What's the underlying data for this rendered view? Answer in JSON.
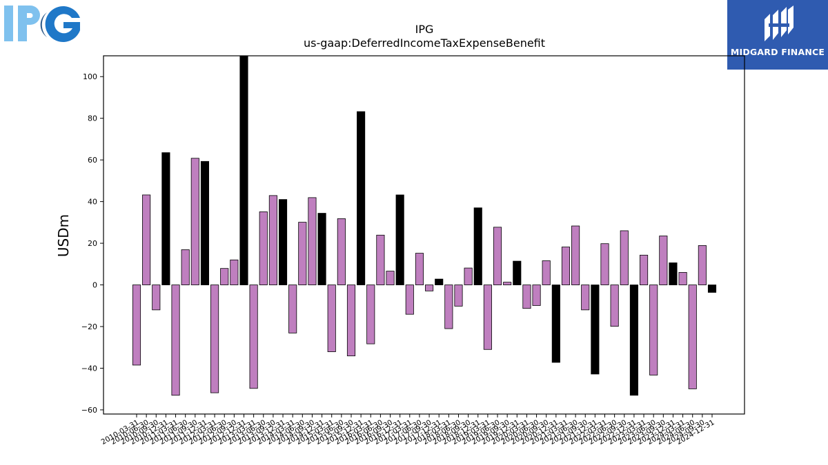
{
  "logos": {
    "left_logo_name": "ipg-logo",
    "right_logo_name": "midgard-finance-logo",
    "right_logo_text": "MIDGARD FINANCE",
    "right_logo_bg": "#2f5bb0"
  },
  "chart_data": {
    "type": "bar",
    "title": "IPG",
    "subtitle": "us-gaap:DeferredIncomeTaxExpenseBenefit",
    "xlabel": "",
    "ylabel": "USDm",
    "ylim": [
      -62,
      110
    ],
    "yticks": [
      -60,
      -40,
      -20,
      0,
      20,
      40,
      60,
      80,
      100
    ],
    "grid": false,
    "legend": "none",
    "colors": {
      "quarter": "#bf7fbf",
      "annual": "#000000",
      "edge": "#000000"
    },
    "categories": [
      "2010-03-31",
      "2010-06-30",
      "2010-09-30",
      "2010-12-31",
      "2011-03-31",
      "2011-06-30",
      "2011-09-30",
      "2011-12-31",
      "2012-03-31",
      "2012-06-30",
      "2012-09-30",
      "2012-12-31",
      "2013-03-31",
      "2013-06-30",
      "2013-09-30",
      "2013-12-31",
      "2014-03-31",
      "2014-06-30",
      "2014-09-30",
      "2014-12-31",
      "2015-03-31",
      "2015-06-30",
      "2015-09-30",
      "2015-12-31",
      "2016-03-31",
      "2016-06-30",
      "2016-09-30",
      "2016-12-31",
      "2017-03-31",
      "2017-06-30",
      "2017-09-30",
      "2017-12-31",
      "2018-03-31",
      "2018-06-30",
      "2018-09-30",
      "2018-12-31",
      "2019-03-31",
      "2019-06-30",
      "2019-09-30",
      "2019-12-31",
      "2020-03-31",
      "2020-06-30",
      "2020-09-30",
      "2020-12-31",
      "2021-03-31",
      "2021-06-30",
      "2021-09-30",
      "2021-12-31",
      "2022-03-31",
      "2022-06-30",
      "2022-09-30",
      "2022-12-31",
      "2023-03-31",
      "2023-06-30",
      "2023-09-30",
      "2023-12-31",
      "2024-03-31",
      "2024-06-30",
      "2024-09-30",
      "2024-12-31"
    ],
    "values": [
      -38.5,
      43.2,
      -12.0,
      63.5,
      -53.0,
      16.9,
      60.8,
      59.3,
      -51.8,
      7.9,
      12.0,
      110.0,
      -49.7,
      35.1,
      42.9,
      41.0,
      -23.1,
      30.1,
      41.9,
      34.4,
      -32.1,
      31.8,
      -34.1,
      83.2,
      -28.3,
      23.9,
      6.6,
      43.2,
      -14.1,
      15.2,
      -2.9,
      2.8,
      -21.0,
      -10.2,
      8.1,
      37.0,
      -31.0,
      27.7,
      1.3,
      11.4,
      -11.3,
      -9.9,
      11.6,
      -37.2,
      18.2,
      28.3,
      -12.0,
      -42.8,
      19.8,
      -19.9,
      26.0,
      -53.0,
      14.3,
      -43.3,
      23.5,
      10.6,
      6.0,
      -49.9,
      18.9,
      -3.6
    ],
    "annual_flags": [
      false,
      false,
      false,
      true,
      false,
      false,
      false,
      true,
      false,
      false,
      false,
      true,
      false,
      false,
      false,
      true,
      false,
      false,
      false,
      true,
      false,
      false,
      false,
      true,
      false,
      false,
      false,
      true,
      false,
      false,
      false,
      true,
      false,
      false,
      false,
      true,
      false,
      false,
      false,
      true,
      false,
      false,
      false,
      true,
      false,
      false,
      false,
      true,
      false,
      false,
      false,
      true,
      false,
      false,
      false,
      true,
      false,
      false,
      false,
      true
    ]
  }
}
